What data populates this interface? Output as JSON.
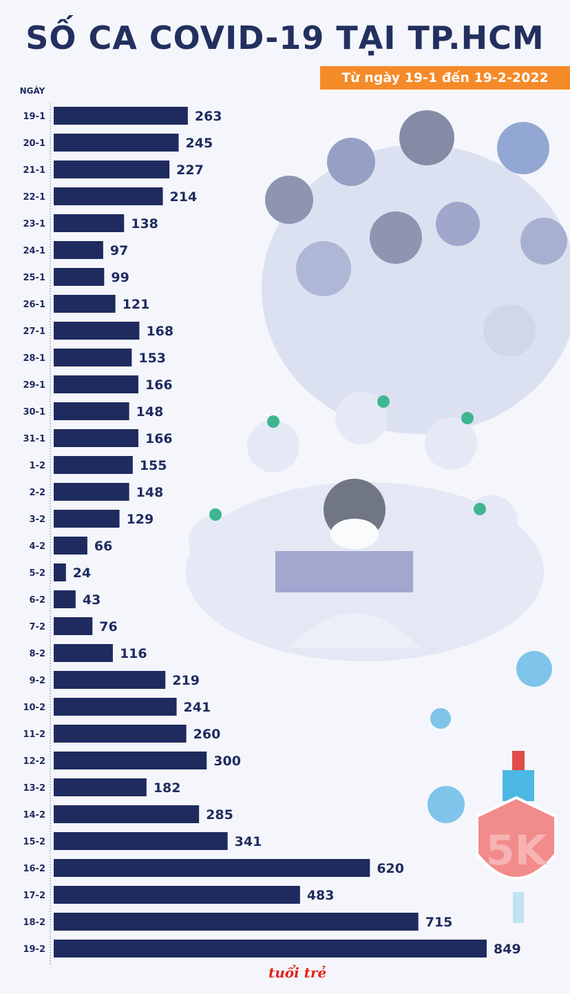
{
  "brand": {
    "logo_text": "tuổi trẻ"
  },
  "colors": {
    "bar": "#1f2b5e",
    "accent": "#f58a29",
    "title": "#23305f"
  },
  "chart_data": {
    "type": "bar",
    "orientation": "horizontal",
    "title": "SỐ CA COVID-19 TẠI TP.HCM",
    "subtitle": "Từ ngày 19-1 đến 19-2-2022",
    "ylabel": "NGÀY",
    "xlabel": "",
    "xlim": [
      0,
      849
    ],
    "categories": [
      "19-1",
      "20-1",
      "21-1",
      "22-1",
      "23-1",
      "24-1",
      "25-1",
      "26-1",
      "27-1",
      "28-1",
      "29-1",
      "30-1",
      "31-1",
      "1-2",
      "2-2",
      "3-2",
      "4-2",
      "5-2",
      "6-2",
      "7-2",
      "8-2",
      "9-2",
      "10-2",
      "11-2",
      "12-2",
      "13-2",
      "14-2",
      "15-2",
      "16-2",
      "17-2",
      "18-2",
      "19-2"
    ],
    "values": [
      263,
      245,
      227,
      214,
      138,
      97,
      99,
      121,
      168,
      153,
      166,
      148,
      166,
      155,
      148,
      129,
      66,
      24,
      43,
      76,
      116,
      219,
      241,
      260,
      300,
      182,
      285,
      341,
      620,
      483,
      715,
      849
    ]
  }
}
